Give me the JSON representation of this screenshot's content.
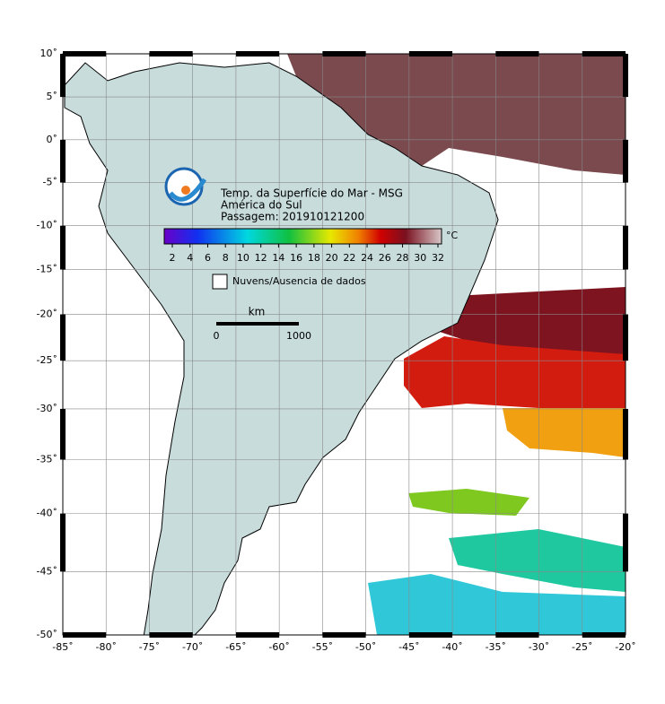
{
  "title": {
    "lines": [
      "Temp. da Superfície do Mar - MSG",
      "América do Sul",
      "Passagem: 201910121200"
    ]
  },
  "colorbar": {
    "unit": "°C",
    "ticks": [
      2,
      4,
      6,
      8,
      10,
      12,
      14,
      16,
      18,
      20,
      22,
      24,
      26,
      28,
      30,
      32
    ]
  },
  "legend": {
    "label": "Nuvens/Ausencia de dados"
  },
  "scale_bar": {
    "unit": "km",
    "labels": [
      "0",
      "1000"
    ]
  },
  "map": {
    "lonlim": [
      -85,
      -20
    ],
    "latlim": [
      -50,
      10
    ],
    "lon_ticks": [
      {
        "value": -85,
        "label": "-85˚"
      },
      {
        "value": -80,
        "label": "-80˚"
      },
      {
        "value": -75,
        "label": "-75˚"
      },
      {
        "value": -70,
        "label": "-70˚"
      },
      {
        "value": -65,
        "label": "-65˚"
      },
      {
        "value": -60,
        "label": "-60˚"
      },
      {
        "value": -55,
        "label": "-55˚"
      },
      {
        "value": -50,
        "label": "-50˚"
      },
      {
        "value": -45,
        "label": "-45˚"
      },
      {
        "value": -40,
        "label": "-40˚"
      },
      {
        "value": -35,
        "label": "-35˚"
      },
      {
        "value": -30,
        "label": "-30˚"
      },
      {
        "value": -25,
        "label": "-25˚"
      },
      {
        "value": -20,
        "label": "-20˚"
      }
    ],
    "lat_ticks": [
      {
        "value": 10,
        "label": "10˚"
      },
      {
        "value": 5,
        "label": "5˚"
      },
      {
        "value": 0,
        "label": "0˚"
      },
      {
        "value": -5,
        "label": "-5˚"
      },
      {
        "value": -10,
        "label": "-10˚"
      },
      {
        "value": -15,
        "label": "-15˚"
      },
      {
        "value": -20,
        "label": "-20˚"
      },
      {
        "value": -25,
        "label": "-25˚"
      },
      {
        "value": -30,
        "label": "-30˚"
      },
      {
        "value": -35,
        "label": "-35˚"
      },
      {
        "value": -40,
        "label": "-40˚"
      },
      {
        "value": -45,
        "label": "-45˚"
      },
      {
        "value": -50,
        "label": "-50˚"
      }
    ]
  }
}
